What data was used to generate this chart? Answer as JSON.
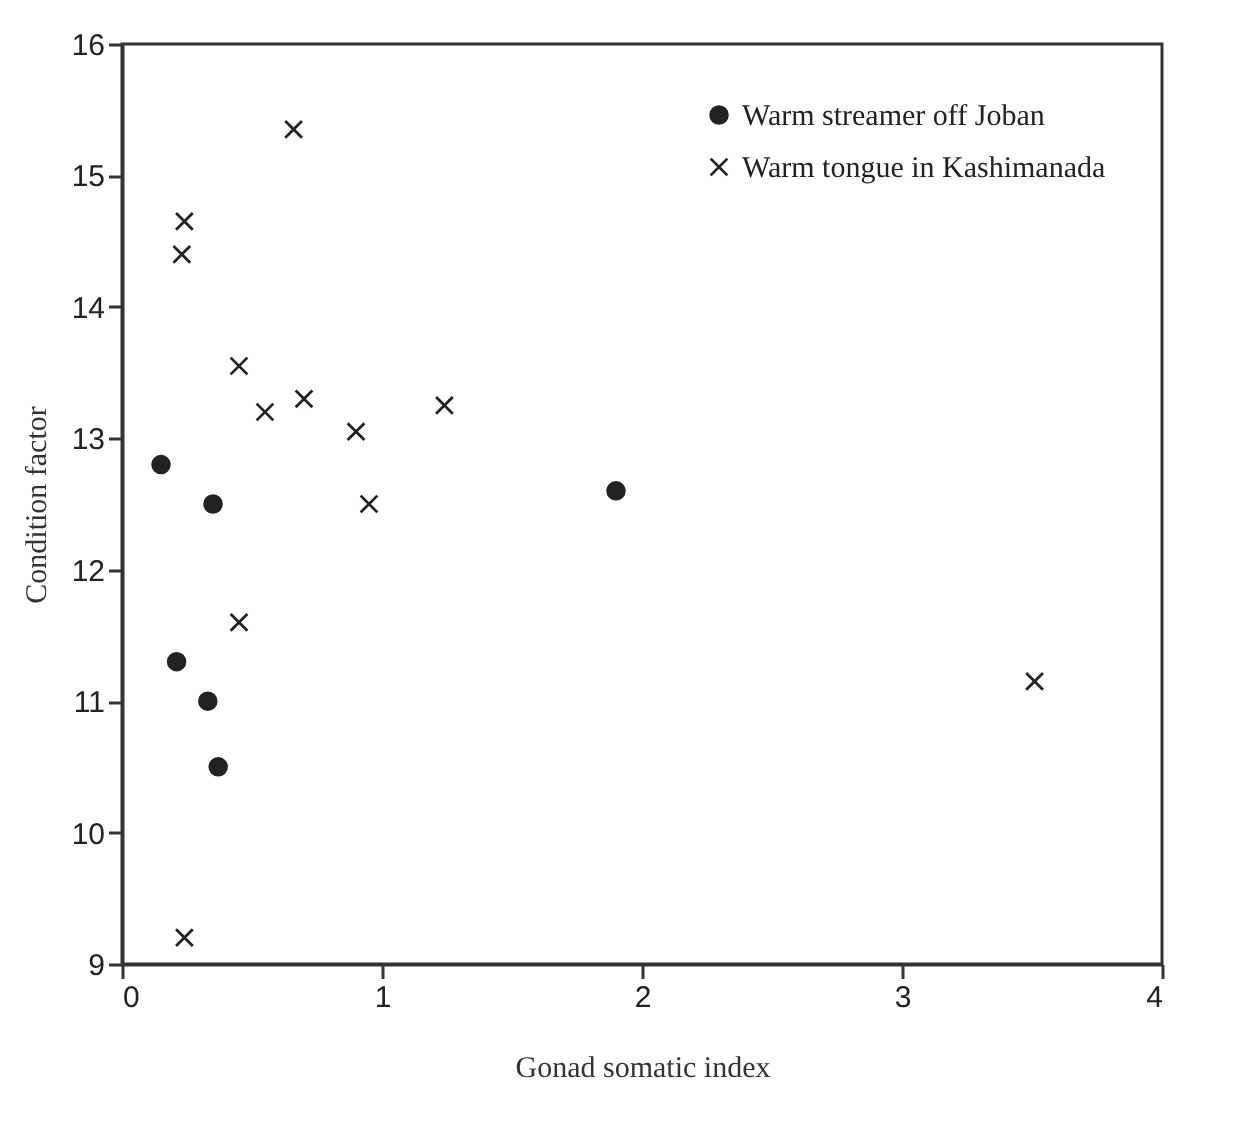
{
  "chart_data": {
    "type": "scatter",
    "xlabel": "Gonad somatic index",
    "ylabel": "Condition factor",
    "xlim": [
      0,
      4
    ],
    "ylim": [
      9,
      16
    ],
    "xticks": [
      0,
      1,
      2,
      3,
      4
    ],
    "yticks": [
      9,
      10,
      11,
      12,
      13,
      14,
      15,
      16
    ],
    "grid": false,
    "legend": "top right",
    "series": [
      {
        "name": "Warm streamer off Joban",
        "color": "#222222",
        "marker": "circle",
        "x": [
          0.15,
          0.35,
          1.9,
          0.21,
          0.33,
          0.37
        ],
        "values": [
          12.8,
          12.5,
          12.6,
          11.3,
          11.0,
          10.5
        ]
      },
      {
        "name": "Warm tongue in Kashimanada",
        "color": "#222222",
        "marker": "cross",
        "x": [
          0.66,
          0.24,
          0.23,
          0.45,
          0.55,
          0.7,
          0.9,
          1.24,
          0.95,
          0.45,
          0.24,
          3.51
        ],
        "values": [
          15.35,
          14.65,
          14.4,
          13.55,
          13.2,
          13.3,
          13.05,
          13.25,
          12.5,
          11.6,
          9.2,
          11.15
        ]
      }
    ]
  }
}
